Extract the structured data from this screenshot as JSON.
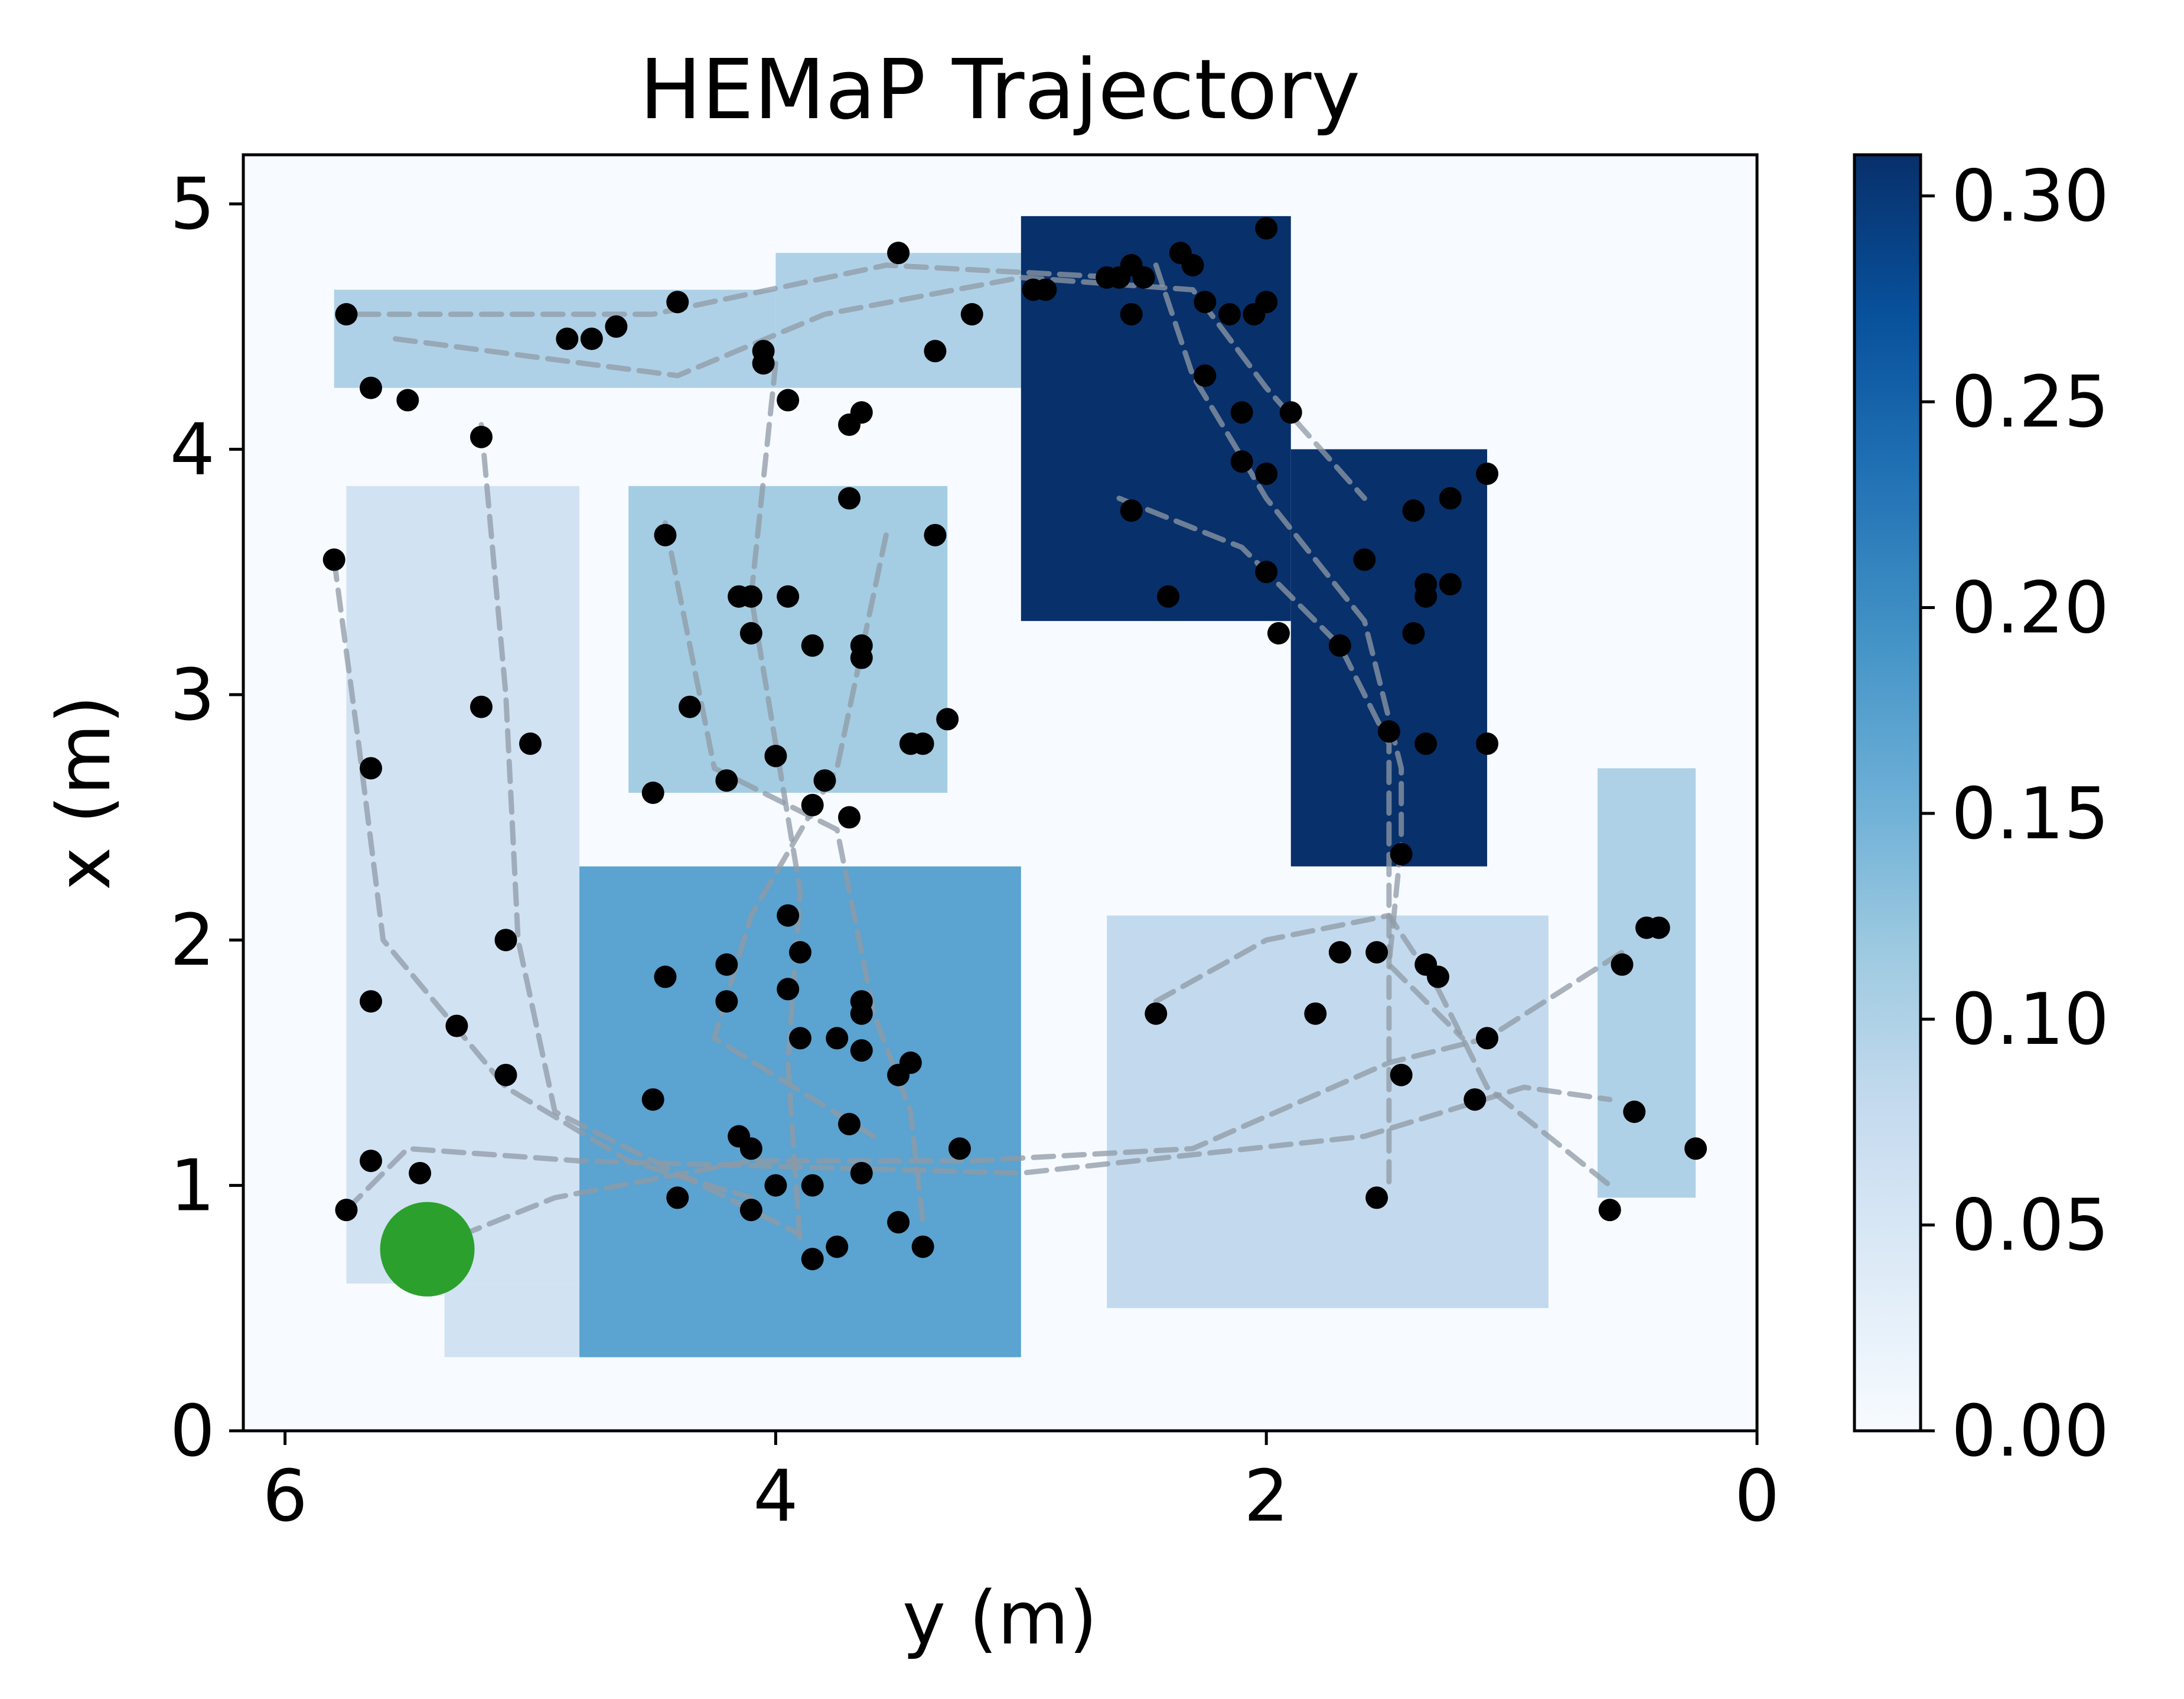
{
  "chart_data": {
    "type": "heatmap",
    "title": "HEMaP Trajectory",
    "xlabel": "y (m)",
    "ylabel": "x (m)",
    "xlim": [
      6.17,
      0.0
    ],
    "ylim": [
      0.0,
      5.2
    ],
    "xticks": [
      6,
      4,
      2,
      0
    ],
    "yticks": [
      0,
      1,
      2,
      3,
      4,
      5
    ],
    "colormap": "Blues",
    "colorbar": {
      "vmin": 0.0,
      "vmax": 0.31,
      "ticks": [
        0.0,
        0.05,
        0.1,
        0.15,
        0.2,
        0.25,
        0.3
      ],
      "tick_labels": [
        "0.00",
        "0.05",
        "0.10",
        "0.15",
        "0.20",
        "0.25",
        "0.30"
      ]
    },
    "colors": {
      "trajectory": "#8f9aa6",
      "waypoint": "#000000",
      "start": "#2ca02c",
      "background": "#f7fbff"
    },
    "regions": [
      {
        "name": "region-bottom-left",
        "value": 0.06,
        "y_range": [
          5.75,
          4.8
        ],
        "x_range": [
          0.6,
          3.85
        ]
      },
      {
        "name": "region-left-tail",
        "value": 0.06,
        "y_range": [
          5.35,
          4.8
        ],
        "x_range": [
          0.3,
          0.6
        ]
      },
      {
        "name": "region-top-left",
        "value": 0.1,
        "y_range": [
          5.8,
          4.0
        ],
        "x_range": [
          4.25,
          4.65
        ]
      },
      {
        "name": "region-top-middle",
        "value": 0.1,
        "y_range": [
          4.0,
          3.0
        ],
        "x_range": [
          4.25,
          4.8
        ]
      },
      {
        "name": "region-center-upper",
        "value": 0.11,
        "y_range": [
          4.6,
          3.3
        ],
        "x_range": [
          2.6,
          3.85
        ]
      },
      {
        "name": "region-center-lower",
        "value": 0.17,
        "y_range": [
          4.8,
          3.0
        ],
        "x_range": [
          0.3,
          2.3
        ]
      },
      {
        "name": "region-top-right",
        "value": 0.31,
        "y_range": [
          3.0,
          1.9
        ],
        "x_range": [
          3.3,
          4.95
        ]
      },
      {
        "name": "region-right-middle",
        "value": 0.31,
        "y_range": [
          1.9,
          1.1
        ],
        "x_range": [
          2.3,
          4.0
        ]
      },
      {
        "name": "region-bottom-right",
        "value": 0.08,
        "y_range": [
          2.65,
          0.85
        ],
        "x_range": [
          0.5,
          2.1
        ]
      },
      {
        "name": "region-far-right",
        "value": 0.1,
        "y_range": [
          0.65,
          0.25
        ],
        "x_range": [
          0.95,
          2.7
        ]
      }
    ],
    "trajectories": [
      [
        [
          5.75,
          0.9
        ],
        [
          5.5,
          1.15
        ],
        [
          4.8,
          1.1
        ],
        [
          3.0,
          1.05
        ],
        [
          1.6,
          1.2
        ],
        [
          0.95,
          1.4
        ],
        [
          0.6,
          1.35
        ]
      ],
      [
        [
          5.4,
          0.75
        ],
        [
          4.9,
          0.95
        ],
        [
          4.1,
          1.1
        ],
        [
          3.2,
          1.1
        ],
        [
          2.3,
          1.15
        ],
        [
          1.5,
          1.5
        ],
        [
          1.1,
          1.6
        ],
        [
          0.55,
          1.95
        ]
      ],
      [
        [
          5.55,
          4.45
        ],
        [
          4.4,
          4.3
        ],
        [
          3.8,
          4.55
        ],
        [
          3.0,
          4.7
        ],
        [
          2.3,
          4.65
        ],
        [
          2.0,
          4.25
        ],
        [
          1.6,
          3.8
        ]
      ],
      [
        [
          5.7,
          4.55
        ],
        [
          4.5,
          4.55
        ],
        [
          3.55,
          4.75
        ],
        [
          2.6,
          4.7
        ]
      ],
      [
        [
          5.8,
          3.55
        ],
        [
          5.7,
          2.8
        ],
        [
          5.6,
          2.0
        ],
        [
          5.1,
          1.4
        ],
        [
          4.6,
          1.1
        ],
        [
          4.1,
          0.95
        ]
      ],
      [
        [
          5.2,
          4.1
        ],
        [
          5.1,
          3.0
        ],
        [
          5.05,
          2.0
        ],
        [
          4.9,
          1.3
        ],
        [
          4.4,
          1.05
        ],
        [
          3.9,
          0.8
        ]
      ],
      [
        [
          4.0,
          4.35
        ],
        [
          4.1,
          3.4
        ],
        [
          4.0,
          2.8
        ],
        [
          3.9,
          2.2
        ],
        [
          3.95,
          1.5
        ],
        [
          3.9,
          0.75
        ]
      ],
      [
        [
          4.45,
          3.7
        ],
        [
          4.25,
          2.7
        ],
        [
          3.75,
          2.45
        ],
        [
          3.6,
          1.7
        ],
        [
          3.45,
          1.3
        ],
        [
          3.4,
          0.85
        ]
      ],
      [
        [
          3.55,
          3.65
        ],
        [
          3.75,
          2.7
        ],
        [
          4.1,
          2.1
        ],
        [
          4.25,
          1.6
        ],
        [
          3.6,
          1.2
        ]
      ],
      [
        [
          2.45,
          4.75
        ],
        [
          2.3,
          4.3
        ],
        [
          2.0,
          3.8
        ],
        [
          1.6,
          3.3
        ],
        [
          1.45,
          2.7
        ],
        [
          1.45,
          2.4
        ],
        [
          1.5,
          1.9
        ],
        [
          1.2,
          1.6
        ]
      ],
      [
        [
          2.6,
          3.8
        ],
        [
          2.1,
          3.6
        ],
        [
          1.7,
          3.2
        ],
        [
          1.5,
          2.8
        ],
        [
          1.5,
          2.0
        ],
        [
          1.5,
          1.0
        ]
      ],
      [
        [
          2.45,
          1.75
        ],
        [
          2.0,
          2.0
        ],
        [
          1.5,
          2.1
        ],
        [
          1.3,
          1.8
        ],
        [
          1.1,
          1.4
        ],
        [
          0.6,
          1.0
        ]
      ]
    ],
    "waypoints": [
      [
        5.75,
        4.55
      ],
      [
        5.65,
        4.25
      ],
      [
        5.5,
        4.2
      ],
      [
        4.85,
        4.45
      ],
      [
        4.75,
        4.45
      ],
      [
        4.65,
        4.5
      ],
      [
        4.4,
        4.6
      ],
      [
        4.05,
        4.4
      ],
      [
        4.05,
        4.35
      ],
      [
        3.95,
        4.2
      ],
      [
        3.7,
        4.1
      ],
      [
        3.65,
        4.15
      ],
      [
        3.5,
        4.8
      ],
      [
        3.35,
        4.4
      ],
      [
        3.2,
        4.55
      ],
      [
        2.95,
        4.65
      ],
      [
        2.9,
        4.65
      ],
      [
        5.2,
        4.05
      ],
      [
        3.7,
        3.8
      ],
      [
        3.35,
        3.65
      ],
      [
        4.45,
        3.65
      ],
      [
        4.15,
        3.4
      ],
      [
        4.1,
        3.4
      ],
      [
        3.95,
        3.4
      ],
      [
        4.1,
        3.25
      ],
      [
        3.85,
        3.2
      ],
      [
        3.65,
        3.2
      ],
      [
        3.65,
        3.15
      ],
      [
        4.35,
        2.95
      ],
      [
        3.3,
        2.9
      ],
      [
        4.0,
        2.75
      ],
      [
        3.45,
        2.8
      ],
      [
        3.4,
        2.8
      ],
      [
        4.2,
        2.65
      ],
      [
        3.8,
        2.65
      ],
      [
        4.5,
        2.6
      ],
      [
        3.85,
        2.55
      ],
      [
        3.7,
        2.5
      ],
      [
        5.8,
        3.55
      ],
      [
        5.2,
        2.95
      ],
      [
        5.0,
        2.8
      ],
      [
        5.65,
        2.7
      ],
      [
        5.1,
        2.0
      ],
      [
        5.65,
        1.75
      ],
      [
        5.3,
        1.65
      ],
      [
        5.1,
        1.45
      ],
      [
        5.65,
        1.1
      ],
      [
        5.45,
        1.05
      ],
      [
        5.75,
        0.9
      ],
      [
        3.95,
        2.1
      ],
      [
        3.9,
        1.95
      ],
      [
        4.2,
        1.9
      ],
      [
        4.45,
        1.85
      ],
      [
        4.2,
        1.75
      ],
      [
        3.95,
        1.8
      ],
      [
        3.65,
        1.75
      ],
      [
        3.65,
        1.7
      ],
      [
        3.9,
        1.6
      ],
      [
        3.75,
        1.6
      ],
      [
        3.65,
        1.55
      ],
      [
        3.45,
        1.5
      ],
      [
        3.5,
        1.45
      ],
      [
        4.5,
        1.35
      ],
      [
        3.7,
        1.25
      ],
      [
        4.15,
        1.2
      ],
      [
        4.1,
        1.15
      ],
      [
        3.25,
        1.15
      ],
      [
        3.65,
        1.05
      ],
      [
        4.0,
        1.0
      ],
      [
        3.85,
        1.0
      ],
      [
        4.4,
        0.95
      ],
      [
        4.1,
        0.9
      ],
      [
        3.5,
        0.85
      ],
      [
        3.75,
        0.75
      ],
      [
        3.85,
        0.7
      ],
      [
        3.4,
        0.75
      ],
      [
        2.0,
        4.9
      ],
      [
        2.35,
        4.8
      ],
      [
        2.55,
        4.75
      ],
      [
        2.65,
        4.7
      ],
      [
        2.6,
        4.7
      ],
      [
        2.5,
        4.7
      ],
      [
        2.3,
        4.75
      ],
      [
        2.25,
        4.6
      ],
      [
        2.15,
        4.55
      ],
      [
        2.0,
        4.6
      ],
      [
        2.05,
        4.55
      ],
      [
        2.55,
        4.55
      ],
      [
        2.25,
        4.3
      ],
      [
        2.1,
        4.15
      ],
      [
        1.9,
        4.15
      ],
      [
        2.1,
        3.95
      ],
      [
        2.0,
        3.9
      ],
      [
        2.55,
        3.75
      ],
      [
        1.4,
        3.75
      ],
      [
        1.25,
        3.8
      ],
      [
        1.1,
        3.9
      ],
      [
        1.6,
        3.55
      ],
      [
        2.0,
        3.5
      ],
      [
        1.35,
        3.45
      ],
      [
        1.25,
        3.45
      ],
      [
        1.35,
        3.4
      ],
      [
        2.4,
        3.4
      ],
      [
        1.95,
        3.25
      ],
      [
        1.7,
        3.2
      ],
      [
        1.4,
        3.25
      ],
      [
        1.5,
        2.85
      ],
      [
        1.35,
        2.8
      ],
      [
        1.1,
        2.8
      ],
      [
        1.45,
        2.35
      ],
      [
        1.7,
        1.95
      ],
      [
        1.55,
        1.95
      ],
      [
        1.35,
        1.9
      ],
      [
        1.3,
        1.85
      ],
      [
        2.45,
        1.7
      ],
      [
        1.8,
        1.7
      ],
      [
        1.1,
        1.6
      ],
      [
        1.45,
        1.45
      ],
      [
        1.15,
        1.35
      ],
      [
        1.55,
        0.95
      ],
      [
        0.55,
        1.9
      ],
      [
        0.45,
        2.05
      ],
      [
        0.4,
        2.05
      ],
      [
        0.5,
        1.3
      ],
      [
        0.25,
        1.15
      ],
      [
        0.6,
        0.9
      ]
    ],
    "start_point": [
      5.42,
      0.74
    ]
  }
}
